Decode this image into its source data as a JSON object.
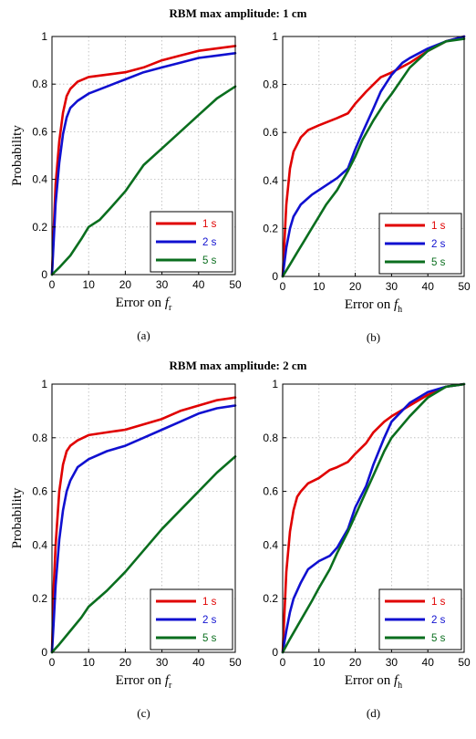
{
  "figure": {
    "rows": [
      {
        "title": "RBM max amplitude: 1 cm"
      },
      {
        "title": "RBM max amplitude: 2 cm"
      }
    ]
  },
  "legend_labels": [
    "1 s",
    "2 s",
    "5 s"
  ],
  "colors": {
    "1 s": "#e00000",
    "2 s": "#1010d0",
    "5 s": "#0a6e1e"
  },
  "chart_data": [
    {
      "type": "line",
      "panel_label": "(a)",
      "xlabel": "Error on f_r",
      "xlabel_main": "Error on ",
      "xlabel_var": "f",
      "xlabel_sub": "r",
      "ylabel": "Probability",
      "xlim": [
        0,
        50
      ],
      "ylim": [
        0,
        1
      ],
      "xticks": [
        0,
        10,
        20,
        30,
        40,
        50
      ],
      "yticks": [
        0,
        0.2,
        0.4,
        0.6,
        0.8,
        1
      ],
      "ytick_labels": [
        "0",
        "0.2",
        "0.4",
        "0.6",
        "0.8",
        "1"
      ],
      "grid": true,
      "legend_position": "bottom-right",
      "series": [
        {
          "name": "1 s",
          "x": [
            0,
            0.5,
            1,
            2,
            3,
            4,
            5,
            7,
            10,
            15,
            20,
            25,
            30,
            35,
            40,
            45,
            50
          ],
          "y": [
            0,
            0.2,
            0.38,
            0.56,
            0.68,
            0.75,
            0.78,
            0.81,
            0.83,
            0.84,
            0.85,
            0.87,
            0.9,
            0.92,
            0.94,
            0.95,
            0.96
          ]
        },
        {
          "name": "2 s",
          "x": [
            0,
            0.5,
            1,
            2,
            3,
            4,
            5,
            7,
            10,
            15,
            20,
            25,
            30,
            35,
            40,
            45,
            50
          ],
          "y": [
            0,
            0.15,
            0.3,
            0.47,
            0.59,
            0.66,
            0.7,
            0.73,
            0.76,
            0.79,
            0.82,
            0.85,
            0.87,
            0.89,
            0.91,
            0.92,
            0.93
          ]
        },
        {
          "name": "5 s",
          "x": [
            0,
            2,
            5,
            8,
            10,
            13,
            16,
            20,
            25,
            30,
            35,
            40,
            45,
            50
          ],
          "y": [
            0,
            0.03,
            0.08,
            0.15,
            0.2,
            0.23,
            0.28,
            0.35,
            0.46,
            0.53,
            0.6,
            0.67,
            0.74,
            0.79
          ]
        }
      ]
    },
    {
      "type": "line",
      "panel_label": "(b)",
      "xlabel": "Error on f_h",
      "xlabel_main": "Error on ",
      "xlabel_var": "f",
      "xlabel_sub": "h",
      "ylabel": "",
      "xlim": [
        0,
        50
      ],
      "ylim": [
        0,
        1
      ],
      "xticks": [
        0,
        10,
        20,
        30,
        40,
        50
      ],
      "yticks": [
        0,
        0.2,
        0.4,
        0.6,
        0.8,
        1
      ],
      "ytick_labels": [
        "0",
        "0.2",
        "0.4",
        "0.6",
        "0.8",
        "1"
      ],
      "grid": true,
      "legend_position": "bottom-right",
      "series": [
        {
          "name": "1 s",
          "x": [
            0,
            1,
            2,
            3,
            5,
            7,
            10,
            15,
            18,
            20,
            23,
            25,
            27,
            30,
            35,
            40,
            45,
            50
          ],
          "y": [
            0,
            0.3,
            0.45,
            0.52,
            0.58,
            0.61,
            0.63,
            0.66,
            0.68,
            0.72,
            0.77,
            0.8,
            0.83,
            0.85,
            0.89,
            0.94,
            0.98,
            1
          ]
        },
        {
          "name": "2 s",
          "x": [
            0,
            1,
            2,
            3,
            5,
            8,
            10,
            13,
            15,
            18,
            20,
            22,
            25,
            27,
            30,
            33,
            35,
            40,
            45,
            50
          ],
          "y": [
            0,
            0.12,
            0.2,
            0.25,
            0.3,
            0.34,
            0.36,
            0.39,
            0.41,
            0.45,
            0.53,
            0.6,
            0.7,
            0.77,
            0.84,
            0.89,
            0.91,
            0.95,
            0.98,
            1
          ]
        },
        {
          "name": "5 s",
          "x": [
            0,
            2,
            4,
            6,
            8,
            10,
            12,
            15,
            18,
            20,
            22,
            25,
            28,
            30,
            35,
            40,
            45,
            50
          ],
          "y": [
            0,
            0.05,
            0.1,
            0.15,
            0.2,
            0.25,
            0.3,
            0.36,
            0.44,
            0.5,
            0.57,
            0.65,
            0.72,
            0.76,
            0.87,
            0.94,
            0.98,
            0.99
          ]
        }
      ]
    },
    {
      "type": "line",
      "panel_label": "(c)",
      "xlabel": "Error on f_r",
      "xlabel_main": "Error on ",
      "xlabel_var": "f",
      "xlabel_sub": "r",
      "ylabel": "Probability",
      "xlim": [
        0,
        50
      ],
      "ylim": [
        0,
        1
      ],
      "xticks": [
        0,
        10,
        20,
        30,
        40,
        50
      ],
      "yticks": [
        0,
        0.2,
        0.4,
        0.6,
        0.8,
        1
      ],
      "ytick_labels": [
        "0",
        "0.2",
        "0.4",
        "0.6",
        "0.8",
        "1"
      ],
      "grid": true,
      "legend_position": "bottom-right",
      "series": [
        {
          "name": "1 s",
          "x": [
            0,
            0.5,
            1,
            2,
            3,
            4,
            5,
            7,
            10,
            15,
            20,
            25,
            30,
            35,
            40,
            45,
            50
          ],
          "y": [
            0,
            0.25,
            0.4,
            0.6,
            0.7,
            0.75,
            0.77,
            0.79,
            0.81,
            0.82,
            0.83,
            0.85,
            0.87,
            0.9,
            0.92,
            0.94,
            0.95
          ]
        },
        {
          "name": "2 s",
          "x": [
            0,
            0.5,
            1,
            2,
            3,
            4,
            5,
            7,
            10,
            15,
            20,
            25,
            30,
            35,
            40,
            45,
            50
          ],
          "y": [
            0,
            0.12,
            0.25,
            0.42,
            0.53,
            0.6,
            0.64,
            0.69,
            0.72,
            0.75,
            0.77,
            0.8,
            0.83,
            0.86,
            0.89,
            0.91,
            0.92
          ]
        },
        {
          "name": "5 s",
          "x": [
            0,
            2,
            5,
            8,
            10,
            15,
            20,
            25,
            30,
            35,
            40,
            45,
            50
          ],
          "y": [
            0,
            0.03,
            0.08,
            0.13,
            0.17,
            0.23,
            0.3,
            0.38,
            0.46,
            0.53,
            0.6,
            0.67,
            0.73
          ]
        }
      ]
    },
    {
      "type": "line",
      "panel_label": "(d)",
      "xlabel": "Error on f_h",
      "xlabel_main": "Error on ",
      "xlabel_var": "f",
      "xlabel_sub": "h",
      "ylabel": "",
      "xlim": [
        0,
        50
      ],
      "ylim": [
        0,
        1
      ],
      "xticks": [
        0,
        10,
        20,
        30,
        40,
        50
      ],
      "yticks": [
        0,
        0.2,
        0.4,
        0.6,
        0.8,
        1
      ],
      "ytick_labels": [
        "0",
        "0.2",
        "0.4",
        "0.6",
        "0.8",
        "1"
      ],
      "grid": true,
      "legend_position": "bottom-right",
      "series": [
        {
          "name": "1 s",
          "x": [
            0,
            1,
            2,
            3,
            4,
            5,
            7,
            10,
            13,
            15,
            18,
            20,
            23,
            25,
            28,
            30,
            35,
            40,
            45,
            50
          ],
          "y": [
            0,
            0.3,
            0.45,
            0.53,
            0.58,
            0.6,
            0.63,
            0.65,
            0.68,
            0.69,
            0.71,
            0.74,
            0.78,
            0.82,
            0.86,
            0.88,
            0.92,
            0.96,
            0.99,
            1
          ]
        },
        {
          "name": "2 s",
          "x": [
            0,
            1,
            2,
            3,
            5,
            7,
            10,
            13,
            15,
            18,
            20,
            23,
            25,
            28,
            30,
            35,
            40,
            45,
            50
          ],
          "y": [
            0,
            0.08,
            0.15,
            0.2,
            0.26,
            0.31,
            0.34,
            0.36,
            0.39,
            0.46,
            0.54,
            0.62,
            0.7,
            0.8,
            0.86,
            0.93,
            0.97,
            0.99,
            1
          ]
        },
        {
          "name": "5 s",
          "x": [
            0,
            2,
            5,
            8,
            10,
            13,
            15,
            18,
            20,
            23,
            25,
            28,
            30,
            35,
            40,
            45,
            50
          ],
          "y": [
            0,
            0.05,
            0.12,
            0.19,
            0.24,
            0.31,
            0.37,
            0.45,
            0.51,
            0.6,
            0.66,
            0.75,
            0.8,
            0.88,
            0.95,
            0.99,
            1
          ]
        }
      ]
    }
  ]
}
